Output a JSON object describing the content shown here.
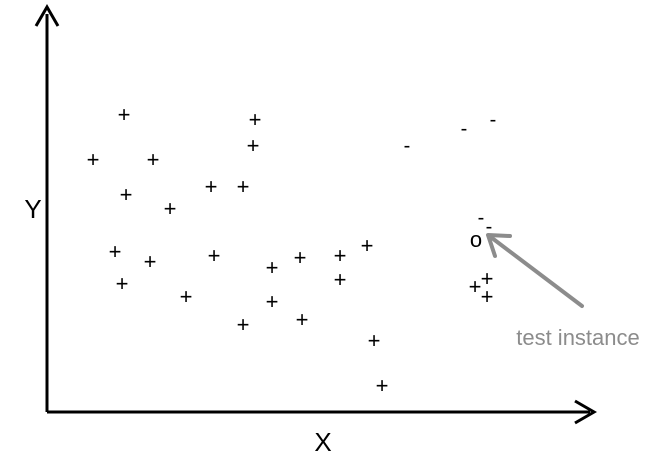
{
  "chart_data": {
    "type": "scatter",
    "xlabel": "X",
    "ylabel": "Y",
    "series": [
      {
        "symbol": "+",
        "points": [
          [
            124,
            115
          ],
          [
            255,
            120
          ],
          [
            93,
            160
          ],
          [
            153,
            160
          ],
          [
            253,
            146
          ],
          [
            126,
            195
          ],
          [
            211,
            187
          ],
          [
            243,
            187
          ],
          [
            170,
            209
          ],
          [
            115,
            252
          ],
          [
            150,
            262
          ],
          [
            214,
            256
          ],
          [
            272,
            268
          ],
          [
            300,
            258
          ],
          [
            340,
            256
          ],
          [
            367,
            246
          ],
          [
            122,
            284
          ],
          [
            186,
            297
          ],
          [
            340,
            280
          ],
          [
            272,
            302
          ],
          [
            243,
            325
          ],
          [
            302,
            320
          ],
          [
            374,
            341
          ],
          [
            382,
            386
          ],
          [
            487,
            279
          ],
          [
            475,
            287
          ],
          [
            487,
            297
          ]
        ]
      },
      {
        "symbol": "-",
        "points": [
          [
            407,
            145
          ],
          [
            464,
            128
          ],
          [
            493,
            119
          ],
          [
            481,
            217
          ],
          [
            489,
            226
          ]
        ]
      },
      {
        "symbol": "o",
        "points": [
          [
            476,
            240
          ]
        ]
      }
    ],
    "annotation": {
      "text": "test instance",
      "color": "#8c8c8c"
    },
    "colors": {
      "axis": "#000000",
      "marks": "#000000",
      "annotation": "#8c8c8c"
    }
  }
}
